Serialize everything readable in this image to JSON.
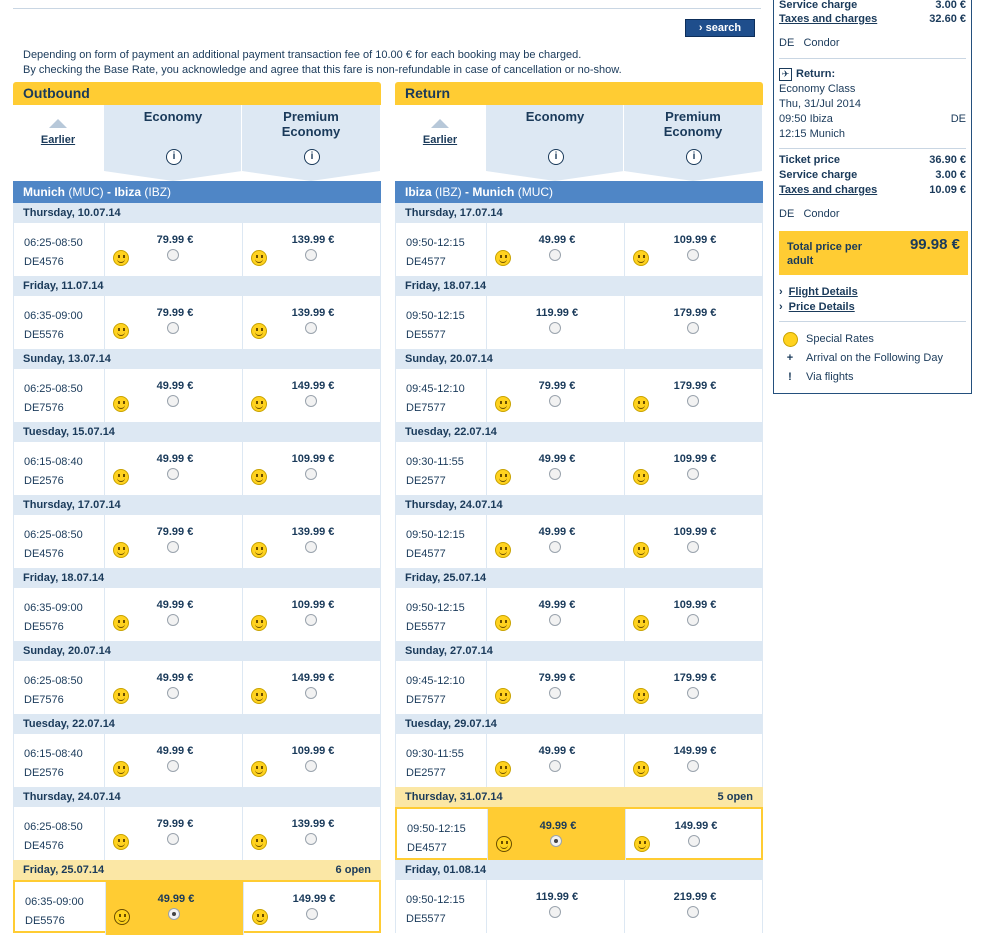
{
  "search_label": "search",
  "notice": [
    "Depending on form of payment an additional payment transaction fee of 10.00 € for each booking may be charged.",
    "By checking the Base Rate, you acknowledge and agree that this fare is non-refundable in case of cancellation or no-show."
  ],
  "outbound": {
    "title": "Outbound",
    "earlier": "Earlier",
    "cabin1": "Economy",
    "cabin2a": "Premium",
    "cabin2b": "Economy",
    "info": "i",
    "route_from": "Munich",
    "route_from_code": "(MUC)",
    "route_to": "Ibiza",
    "route_to_code": "(IBZ)",
    "days": [
      {
        "date": "Thursday, 10.07.14",
        "time": "06:25-08:50",
        "flight": "DE4576",
        "eco": "79.99 €",
        "prem": "139.99 €"
      },
      {
        "date": "Friday, 11.07.14",
        "time": "06:35-09:00",
        "flight": "DE5576",
        "eco": "79.99 €",
        "prem": "139.99 €"
      },
      {
        "date": "Sunday, 13.07.14",
        "time": "06:25-08:50",
        "flight": "DE7576",
        "eco": "49.99 €",
        "prem": "149.99 €"
      },
      {
        "date": "Tuesday, 15.07.14",
        "time": "06:15-08:40",
        "flight": "DE2576",
        "eco": "49.99 €",
        "prem": "109.99 €"
      },
      {
        "date": "Thursday, 17.07.14",
        "time": "06:25-08:50",
        "flight": "DE4576",
        "eco": "79.99 €",
        "prem": "139.99 €"
      },
      {
        "date": "Friday, 18.07.14",
        "time": "06:35-09:00",
        "flight": "DE5576",
        "eco": "49.99 €",
        "prem": "109.99 €"
      },
      {
        "date": "Sunday, 20.07.14",
        "time": "06:25-08:50",
        "flight": "DE7576",
        "eco": "49.99 €",
        "prem": "149.99 €"
      },
      {
        "date": "Tuesday, 22.07.14",
        "time": "06:15-08:40",
        "flight": "DE2576",
        "eco": "49.99 €",
        "prem": "109.99 €"
      },
      {
        "date": "Thursday, 24.07.14",
        "time": "06:25-08:50",
        "flight": "DE4576",
        "eco": "79.99 €",
        "prem": "139.99 €"
      },
      {
        "date": "Friday, 25.07.14",
        "time": "06:35-09:00",
        "flight": "DE5576",
        "eco": "49.99 €",
        "prem": "149.99 €",
        "open": "6 open"
      }
    ]
  },
  "return": {
    "title": "Return",
    "earlier": "Earlier",
    "cabin1": "Economy",
    "cabin2a": "Premium",
    "cabin2b": "Economy",
    "info": "i",
    "route_from": "Ibiza",
    "route_from_code": "(IBZ)",
    "route_to": "Munich",
    "route_to_code": "(MUC)",
    "days": [
      {
        "date": "Thursday, 17.07.14",
        "time": "09:50-12:15",
        "flight": "DE4577",
        "eco": "49.99 €",
        "prem": "109.99 €"
      },
      {
        "date": "Friday, 18.07.14",
        "time": "09:50-12:15",
        "flight": "DE5577",
        "eco": "119.99 €",
        "prem": "179.99 €"
      },
      {
        "date": "Sunday, 20.07.14",
        "time": "09:45-12:10",
        "flight": "DE7577",
        "eco": "79.99 €",
        "prem": "179.99 €"
      },
      {
        "date": "Tuesday, 22.07.14",
        "time": "09:30-11:55",
        "flight": "DE2577",
        "eco": "49.99 €",
        "prem": "109.99 €"
      },
      {
        "date": "Thursday, 24.07.14",
        "time": "09:50-12:15",
        "flight": "DE4577",
        "eco": "49.99 €",
        "prem": "109.99 €"
      },
      {
        "date": "Friday, 25.07.14",
        "time": "09:50-12:15",
        "flight": "DE5577",
        "eco": "49.99 €",
        "prem": "109.99 €"
      },
      {
        "date": "Sunday, 27.07.14",
        "time": "09:45-12:10",
        "flight": "DE7577",
        "eco": "79.99 €",
        "prem": "179.99 €"
      },
      {
        "date": "Tuesday, 29.07.14",
        "time": "09:30-11:55",
        "flight": "DE2577",
        "eco": "49.99 €",
        "prem": "149.99 €"
      },
      {
        "date": "Thursday, 31.07.14",
        "time": "09:50-12:15",
        "flight": "DE4577",
        "eco": "49.99 €",
        "prem": "149.99 €",
        "open": "5 open"
      },
      {
        "date": "Friday, 01.08.14",
        "time": "09:50-12:15",
        "flight": "DE5577",
        "eco": "119.99 €",
        "prem": "219.99 €"
      }
    ]
  },
  "summary": {
    "top_service_label": "Service charge",
    "top_service_value": "3.00 €",
    "top_taxes_label": "Taxes and charges",
    "top_taxes_value": "32.60 €",
    "top_airline_code": "DE",
    "top_airline_name": "Condor",
    "return_heading": "Return:",
    "return_class": "Economy Class",
    "return_date": "Thu, 31/Jul 2014",
    "return_depart": "09:50 Ibiza",
    "return_depart_code": "DE",
    "return_arrive": "12:15 Munich",
    "ticket_label": "Ticket price",
    "ticket_value": "36.90 €",
    "service_label": "Service charge",
    "service_value": "3.00 €",
    "taxes_label": "Taxes and charges",
    "taxes_value": "10.09 €",
    "airline_code": "DE",
    "airline_name": "Condor",
    "total_label_1": "Total price per",
    "total_label_2": "adult",
    "total_value": "99.98 €",
    "flight_details": "Flight Details",
    "price_details": "Price Details",
    "legend_special": "Special Rates",
    "legend_plus_sym": "+",
    "legend_plus": "Arrival on the Following Day",
    "legend_via_sym": "!",
    "legend_via": "Via flights"
  }
}
